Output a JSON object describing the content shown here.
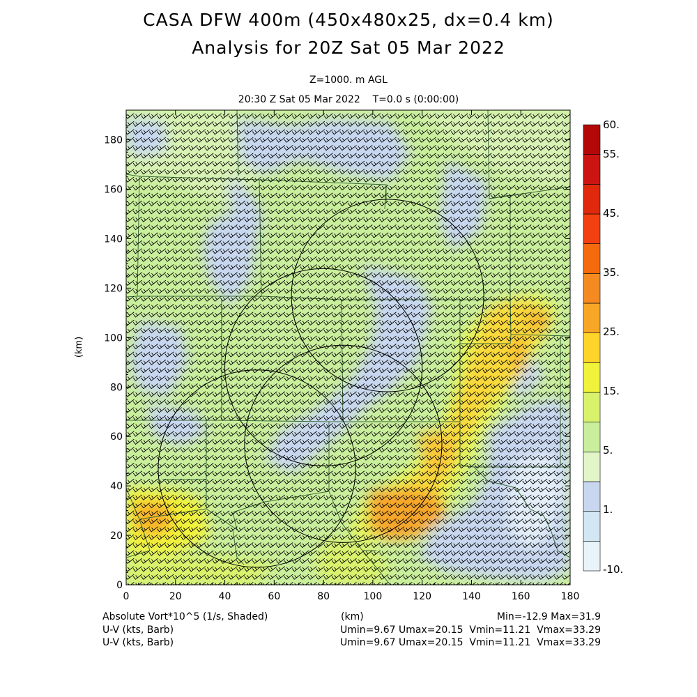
{
  "header": {
    "title_line1": "CASA DFW 400m (450x480x25, dx=0.4 km)",
    "title_line2": "Analysis for 20Z Sat 05 Mar 2022",
    "level": "Z=1000. m AGL",
    "valid_time": "20:30 Z Sat 05 Mar 2022    T=0.0 s (0:00:00)"
  },
  "footer": {
    "field_label": "Absolute Vort*10^5 (1/s, Shaded)",
    "xunit": "(km)",
    "minmax": "Min=-12.9 Max=31.9",
    "barb1_label": "U-V (kts, Barb)",
    "barb1_stats": "Umin=9.67 Umax=20.15  Vmin=11.21  Vmax=33.29",
    "barb2_label": "U-V (kts, Barb)",
    "barb2_stats": "Umin=9.67 Umax=20.15  Vmin=11.21  Vmax=33.29"
  },
  "colorbar": {
    "labels": [
      "60.",
      "55.",
      "45.",
      "35.",
      "25.",
      "15.",
      "5.",
      "1.",
      "-10."
    ],
    "colors": [
      "#e8f4fa",
      "#d2e6f3",
      "#c8d7ef",
      "#e2f5c8",
      "#c9ee9c",
      "#d9f26c",
      "#f1f23a",
      "#fcd42a",
      "#f8a626",
      "#f58a20",
      "#f56a0c",
      "#f24010",
      "#e0280c",
      "#cc1410",
      "#b40808"
    ]
  },
  "chart_data": {
    "type": "heatmap",
    "field": "Absolute Vort*10^5 (1/s)",
    "value_range": [
      -12.9,
      31.9
    ],
    "xlabel": "(km)",
    "ylabel": "(km)",
    "xlim": [
      0,
      180
    ],
    "ylim": [
      0,
      192
    ],
    "x_ticks": [
      0,
      20,
      40,
      60,
      80,
      100,
      120,
      140,
      160,
      180
    ],
    "y_ticks": [
      0,
      20,
      40,
      60,
      80,
      100,
      120,
      140,
      160,
      180
    ],
    "background_color": "#c9ee9c",
    "low_vorticity_regions_color": "#c8d7ef",
    "high_vorticity_regions_colors": [
      "#f1f23a",
      "#fcd42a",
      "#f8a626"
    ],
    "wind_barbs": {
      "u_range_kts": [
        9.67,
        20.15
      ],
      "v_range_kts": [
        11.21,
        33.29
      ]
    },
    "radar_range_circles": [
      {
        "cx": 53,
        "cy": 47,
        "r": 40
      },
      {
        "cx": 80,
        "cy": 88,
        "r": 40
      },
      {
        "cx": 106,
        "cy": 117,
        "r": 39
      },
      {
        "cx": 88,
        "cy": 57,
        "r": 40
      }
    ]
  }
}
